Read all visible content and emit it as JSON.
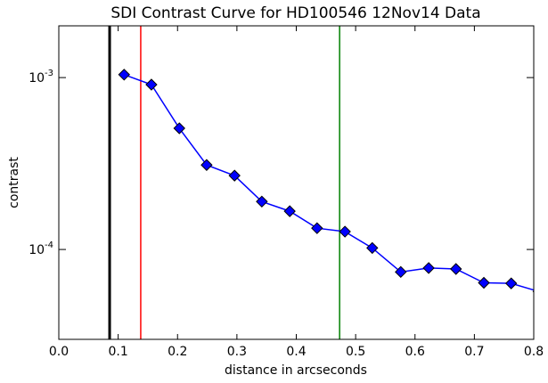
{
  "chart_data": {
    "type": "line",
    "title": "SDI Contrast Curve for HD100546 12Nov14 Data",
    "xlabel": "distance in arcseconds",
    "ylabel": "contrast",
    "x": [
      0.11,
      0.156,
      0.203,
      0.249,
      0.296,
      0.342,
      0.389,
      0.435,
      0.482,
      0.528,
      0.576,
      0.623,
      0.669,
      0.716,
      0.762,
      0.808
    ],
    "series": [
      {
        "color": "#0000ff",
        "values": [
          0.00104,
          0.00091,
          0.000507,
          0.00031,
          0.000269,
          0.00019,
          0.000167,
          0.000133,
          0.000127,
          0.000102,
          7.4e-05,
          7.8e-05,
          7.7e-05,
          6.4e-05,
          6.35e-05,
          5.7e-05
        ]
      }
    ],
    "vlines": [
      {
        "x": 0.0856,
        "color": "#000000",
        "width": 3
      },
      {
        "x": 0.138,
        "color": "#ff0000",
        "width": 1.5
      },
      {
        "x": 0.473,
        "color": "#008000",
        "width": 1.5
      }
    ],
    "xlim": [
      0,
      0.8
    ],
    "ylim": [
      3e-05,
      0.002
    ],
    "ylog": true,
    "xticks": [
      {
        "value": 0,
        "label": "0.0"
      },
      0.1,
      0.2,
      0.3,
      0.4,
      0.5,
      0.6,
      0.7,
      0.8
    ],
    "yticks": [
      {
        "value": 0.0001,
        "label": "10",
        "exponent": "-4"
      },
      {
        "value": 0.001,
        "label": "10",
        "exponent": "-3"
      }
    ]
  }
}
